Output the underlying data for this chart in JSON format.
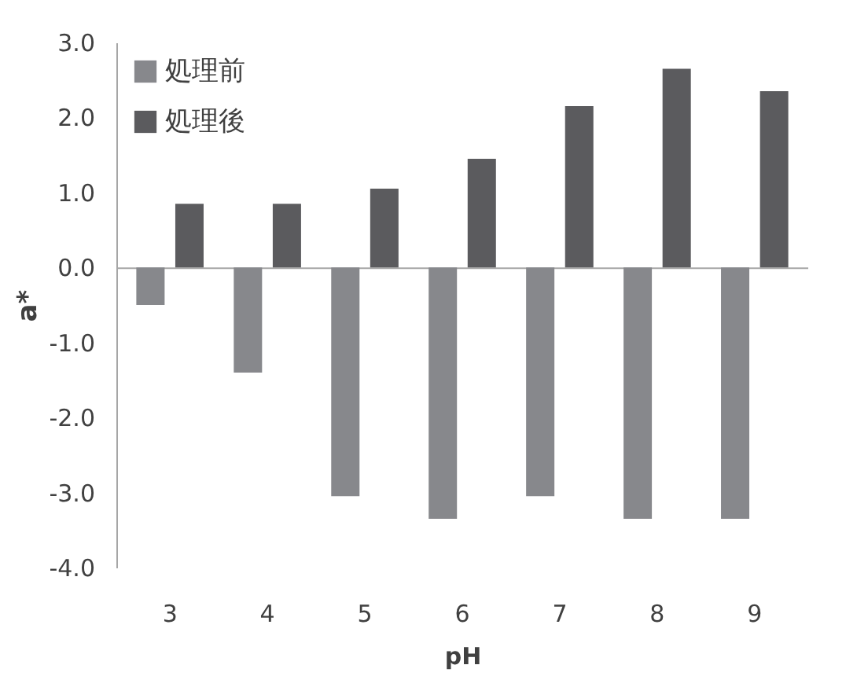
{
  "chart_data": {
    "type": "bar",
    "xlabel": "pH",
    "ylabel": "a*",
    "categories": [
      "3",
      "4",
      "5",
      "6",
      "7",
      "8",
      "9"
    ],
    "series": [
      {
        "name": "処理前",
        "color": "#87888c",
        "values": [
          -0.5,
          -1.4,
          -3.05,
          -3.35,
          -3.05,
          -3.35,
          -3.35
        ]
      },
      {
        "name": "処理後",
        "color": "#5b5b5e",
        "values": [
          0.85,
          0.85,
          1.05,
          1.45,
          2.15,
          2.65,
          2.35
        ]
      }
    ],
    "ylim": [
      -4,
      3
    ],
    "yticks": [
      {
        "value": -4,
        "label": "-4.0"
      },
      {
        "value": -3,
        "label": "-3.0"
      },
      {
        "value": -2,
        "label": "-2.0"
      },
      {
        "value": -1,
        "label": "-1.0"
      },
      {
        "value": 0,
        "label": "0.0"
      },
      {
        "value": 1,
        "label": "1.0"
      },
      {
        "value": 2,
        "label": "2.0"
      },
      {
        "value": 3,
        "label": "3.0"
      }
    ],
    "legend": "top left"
  }
}
